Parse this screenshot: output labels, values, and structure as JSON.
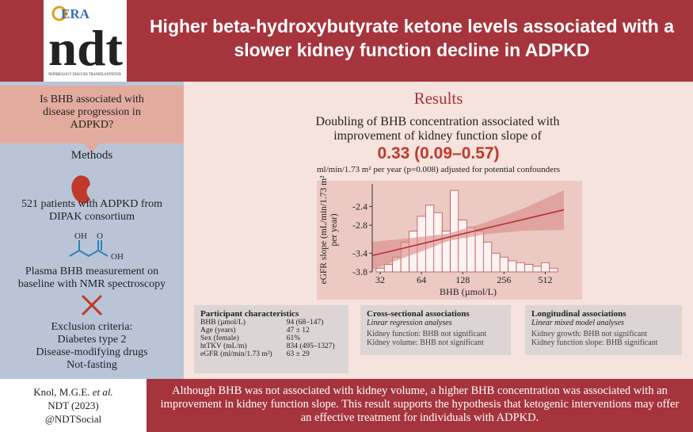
{
  "header": {
    "logo_brand": "ERA",
    "logo_journal": "ndt",
    "logo_tagline": "NEPHROLOGY DIALYSIS TRANSPLANTATION",
    "title": "Higher beta-hydroxybutyrate ketone levels associated with a slower kidney function decline in ADPKD"
  },
  "question": "Is BHB associated with disease progression in ADPKD?",
  "methods": {
    "heading": "Methods",
    "patients": "521 patients with ADPKD from DIPAK consortium",
    "molecule_labels": [
      "OH",
      "O",
      "OH"
    ],
    "measurement": "Plasma BHB measurement on baseline with NMR spectroscopy",
    "exclusion": [
      "Exclusion criteria:",
      "Diabetes type 2",
      "Disease-modifying drugs",
      "Not-fasting"
    ]
  },
  "results": {
    "heading": "Results",
    "statement": "Doubling of BHB concentration associated with improvement of kidney function slope of",
    "effect": "0.33 (0.09–0.57)",
    "effect_note": "ml/min/1.73 m² per year (p=0.008) adjusted for potential confounders"
  },
  "chart_data": {
    "type": "histogram",
    "xlabel": "BHB (µmol/L)",
    "ylabel": [
      "eGFR slope (mL/min/1.73 m²",
      "per year)"
    ],
    "xscale": "log2",
    "xlim": [
      28,
      700
    ],
    "xticks": [
      32,
      64,
      128,
      256,
      512
    ],
    "ylim": [
      -3.8,
      -2.0
    ],
    "yticks": [
      -2.4,
      -2.8,
      -3.4,
      -3.8
    ],
    "bins": [
      29.9,
      34.3,
      39.4,
      45.3,
      52.0,
      59.7,
      68.6,
      78.8,
      90.5,
      104,
      119,
      137,
      158,
      181,
      208,
      239,
      274,
      315,
      362,
      416,
      478,
      549,
      630
    ],
    "counts": [
      2,
      4,
      8,
      16,
      22,
      30,
      36,
      32,
      22,
      44,
      28,
      24,
      22,
      16,
      10,
      8,
      6,
      5,
      4,
      3,
      5,
      2
    ],
    "bar_color": "#fdf3f2",
    "bar_edge": "#b0403f",
    "fit": {
      "color": "#b5323a",
      "band_color": "#d88a86",
      "x": [
        28,
        64,
        100,
        180,
        350,
        700
      ],
      "values": [
        -3.45,
        -3.2,
        -3.06,
        -2.88,
        -2.68,
        -2.47
      ],
      "lower": [
        -3.75,
        -3.36,
        -3.14,
        -3.0,
        -2.92,
        -2.9
      ],
      "upper": [
        -3.16,
        -3.05,
        -2.98,
        -2.76,
        -2.45,
        -2.05
      ]
    }
  },
  "characteristics": {
    "heading": "Participant characteristics",
    "rows": [
      [
        "BHB (µmol/L)",
        "94 (68–147)"
      ],
      [
        "Age (years)",
        "47 ± 12"
      ],
      [
        "Sex (female)",
        "61%"
      ],
      [
        "htTKV (mL/m)",
        "834 (495–1327)"
      ],
      [
        "eGFR (ml/min/1.73 m²)",
        "63 ± 29"
      ]
    ]
  },
  "cross_sectional": {
    "heading": "Cross-sectional associations",
    "subheading": "Linear regression analyses",
    "lines": [
      "Kidney function: BHB not significant",
      "Kidney volume: BHB not significant"
    ]
  },
  "longitudinal": {
    "heading": "Longitudinal associations",
    "subheading": "Linear mixed model analyses",
    "lines": [
      "Kidney growth: BHB not significant",
      "Kidney function slope: BHB significant"
    ]
  },
  "footer": {
    "author": "Knol, M.G.E.",
    "etal": "et al.",
    "journal": "NDT (2023)",
    "handle": "@NDTSocial",
    "conclusion": "Although BHB was not associated with kidney volume, a higher BHB concentration was associated with an improvement in kidney function slope. This result supports the hypothesis that ketogenic interventions may offer an effective treatment for individuals with ADPKD."
  }
}
